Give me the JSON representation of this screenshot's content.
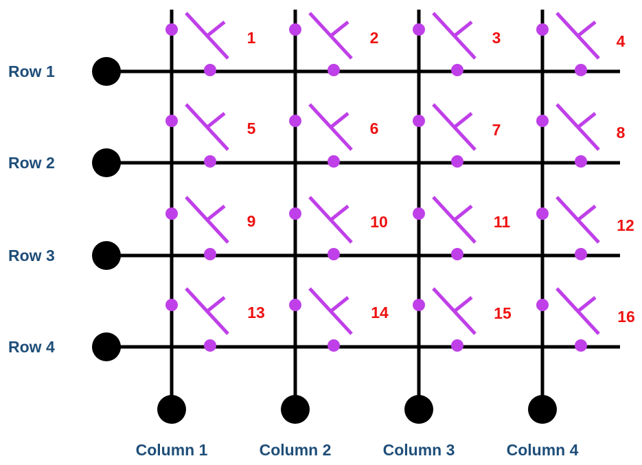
{
  "colors": {
    "wire": "#000000",
    "switch": "#bf40e8",
    "contact": "#bf40e8",
    "key_number": "#ee1111",
    "label": "#1f4e79"
  },
  "rows": [
    {
      "label": "Row 1"
    },
    {
      "label": "Row 2"
    },
    {
      "label": "Row 3"
    },
    {
      "label": "Row 4"
    }
  ],
  "columns": [
    {
      "label": "Column 1"
    },
    {
      "label": "Column 2"
    },
    {
      "label": "Column 3"
    },
    {
      "label": "Column 4"
    }
  ],
  "keys": [
    {
      "number": "1",
      "row": 1,
      "column": 1
    },
    {
      "number": "2",
      "row": 1,
      "column": 2
    },
    {
      "number": "3",
      "row": 1,
      "column": 3
    },
    {
      "number": "4",
      "row": 1,
      "column": 4
    },
    {
      "number": "5",
      "row": 2,
      "column": 1
    },
    {
      "number": "6",
      "row": 2,
      "column": 2
    },
    {
      "number": "7",
      "row": 2,
      "column": 3
    },
    {
      "number": "8",
      "row": 2,
      "column": 4
    },
    {
      "number": "9",
      "row": 3,
      "column": 1
    },
    {
      "number": "10",
      "row": 3,
      "column": 2
    },
    {
      "number": "11",
      "row": 3,
      "column": 3
    },
    {
      "number": "12",
      "row": 3,
      "column": 4
    },
    {
      "number": "13",
      "row": 4,
      "column": 1
    },
    {
      "number": "14",
      "row": 4,
      "column": 2
    },
    {
      "number": "15",
      "row": 4,
      "column": 3
    },
    {
      "number": "16",
      "row": 4,
      "column": 4
    }
  ],
  "icons": {
    "terminal": "terminal-dot-icon",
    "switch": "push-switch-icon"
  }
}
